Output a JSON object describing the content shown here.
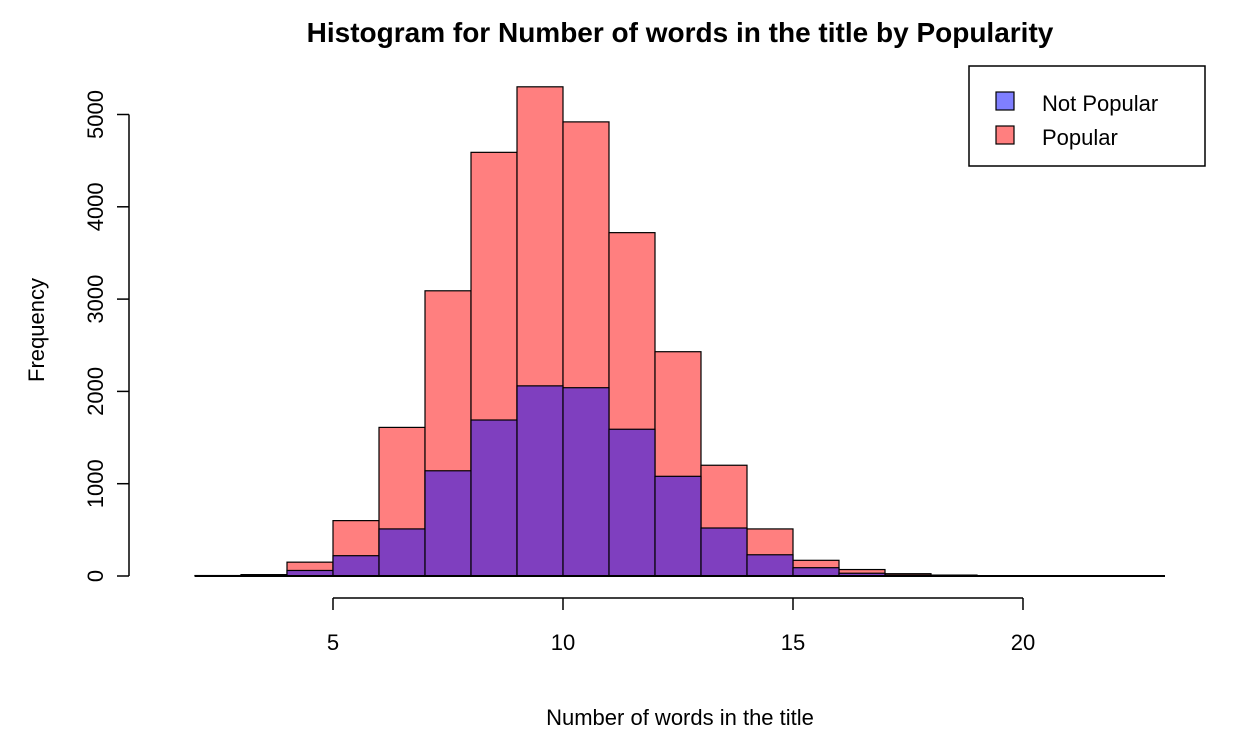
{
  "chart_data": {
    "type": "bar",
    "title": "Histogram for Number of words in the title by Popularity",
    "xlabel": "Number of words in the title",
    "ylabel": "Frequency",
    "xlim": [
      2,
      23
    ],
    "ylim": [
      0,
      5300
    ],
    "x_ticks": [
      5,
      10,
      15,
      20
    ],
    "y_ticks": [
      0,
      1000,
      2000,
      3000,
      4000,
      5000
    ],
    "legend": {
      "position": "top-right",
      "entries": [
        "Not Popular",
        "Popular"
      ]
    },
    "colors": {
      "not_popular": "#7f7fff",
      "popular": "#ff7f7f",
      "overlap": "#7f3fbf"
    },
    "series": [
      {
        "name": "Not Popular",
        "bins": [
          [
            2,
            3
          ],
          [
            3,
            4
          ],
          [
            4,
            5
          ],
          [
            5,
            6
          ],
          [
            6,
            7
          ],
          [
            7,
            8
          ],
          [
            8,
            9
          ],
          [
            9,
            10
          ],
          [
            10,
            11
          ],
          [
            11,
            12
          ],
          [
            12,
            13
          ],
          [
            13,
            14
          ],
          [
            14,
            15
          ],
          [
            15,
            16
          ],
          [
            16,
            17
          ],
          [
            17,
            18
          ],
          [
            18,
            19
          ],
          [
            19,
            20
          ],
          [
            20,
            21
          ],
          [
            21,
            22
          ],
          [
            22,
            23
          ]
        ],
        "values": [
          2,
          5,
          60,
          220,
          510,
          1140,
          1690,
          2060,
          2040,
          1590,
          1080,
          520,
          230,
          90,
          30,
          10,
          5,
          1,
          0,
          0,
          0
        ]
      },
      {
        "name": "Popular",
        "bins": [
          [
            2,
            3
          ],
          [
            3,
            4
          ],
          [
            4,
            5
          ],
          [
            5,
            6
          ],
          [
            6,
            7
          ],
          [
            7,
            8
          ],
          [
            8,
            9
          ],
          [
            9,
            10
          ],
          [
            10,
            11
          ],
          [
            11,
            12
          ],
          [
            12,
            13
          ],
          [
            13,
            14
          ],
          [
            14,
            15
          ],
          [
            15,
            16
          ],
          [
            16,
            17
          ],
          [
            17,
            18
          ],
          [
            18,
            19
          ],
          [
            19,
            20
          ],
          [
            20,
            21
          ],
          [
            21,
            22
          ],
          [
            22,
            23
          ]
        ],
        "values": [
          5,
          15,
          150,
          600,
          1610,
          3090,
          4590,
          5300,
          4920,
          3720,
          2430,
          1200,
          510,
          170,
          70,
          25,
          10,
          3,
          1,
          0,
          0
        ]
      }
    ]
  }
}
